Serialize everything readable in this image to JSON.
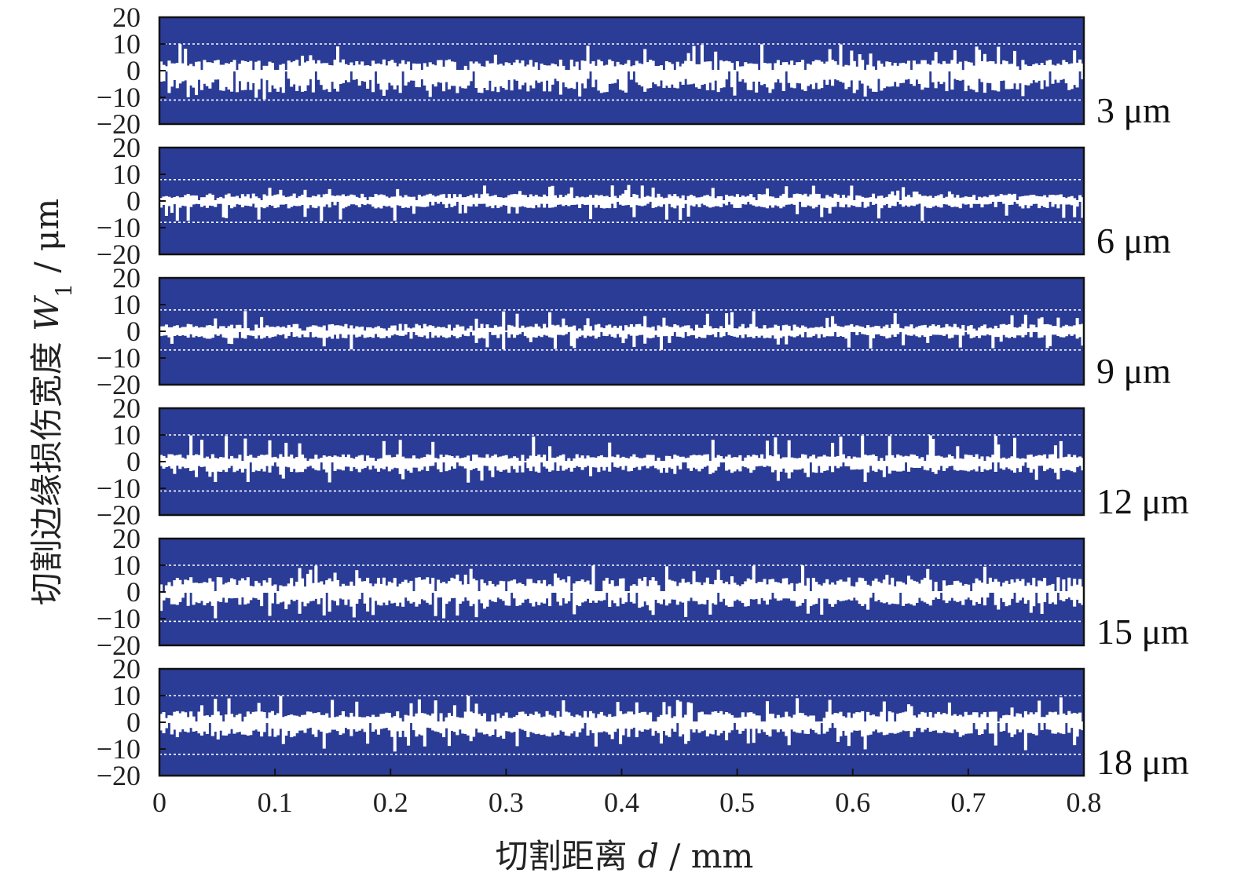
{
  "colors": {
    "panel_fill": "#2B3C96",
    "damage_fill": "#FFFFFF",
    "frame": "#111111",
    "guide_line": "#FFFFFF"
  },
  "chart_data": {
    "type": "area",
    "layout": "stacked-panels",
    "x": {
      "min": 0,
      "max": 0.8,
      "ticks": [
        "0",
        "0.1",
        "0.2",
        "0.3",
        "0.4",
        "0.5",
        "0.6",
        "0.7",
        "0.8"
      ]
    },
    "y": {
      "min": -20,
      "max": 20,
      "ticks": [
        "20",
        "10",
        "0",
        "−10",
        "−20"
      ]
    },
    "xlabel": {
      "prefix": "切割距离 ",
      "symbol": "d",
      "suffix": " / mm"
    },
    "ylabel": {
      "prefix": "切割边缘损伤宽度 ",
      "symbol": "W",
      "subscript": "1",
      "suffix": " / μm"
    },
    "panels": [
      {
        "label": "3 μm",
        "upper_typical": 3,
        "upper_peak": 10,
        "lower_typical": -6,
        "lower_peak": -11,
        "dotted_upper": 10,
        "dotted_lower": -11
      },
      {
        "label": "6 μm",
        "upper_typical": 2,
        "upper_peak": 6,
        "lower_typical": -2,
        "lower_peak": -8,
        "dotted_upper": 8,
        "dotted_lower": -8
      },
      {
        "label": "9 μm",
        "upper_typical": 2,
        "upper_peak": 8,
        "lower_typical": -2,
        "lower_peak": -7,
        "dotted_upper": 8,
        "dotted_lower": -7
      },
      {
        "label": "12 μm",
        "upper_typical": 2,
        "upper_peak": 10,
        "lower_typical": -3,
        "lower_peak": -8,
        "dotted_upper": 10,
        "dotted_lower": -11
      },
      {
        "label": "15 μm",
        "upper_typical": 4,
        "upper_peak": 10,
        "lower_typical": -4,
        "lower_peak": -10,
        "dotted_upper": 10,
        "dotted_lower": -11
      },
      {
        "label": "18 μm",
        "upper_typical": 3,
        "upper_peak": 10,
        "lower_typical": -4,
        "lower_peak": -11,
        "dotted_upper": 10,
        "dotted_lower": -12
      }
    ]
  }
}
